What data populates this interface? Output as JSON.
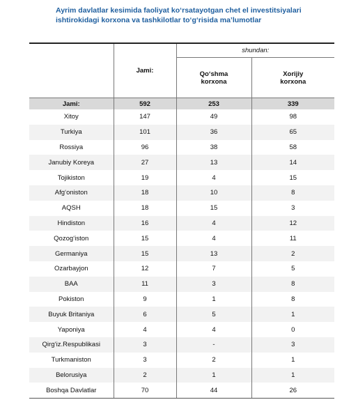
{
  "title": [
    "Ayrim davlatlar kesimida faoliyat ko‘rsatayotgan chet el investitsiyalari",
    "ishtirokidagi korxona va tashkilotlar to‘g‘risida ma’lumotlar"
  ],
  "table": {
    "header": {
      "total": "Jami:",
      "group": "shundan:",
      "joint": "Qo‘shma korxona",
      "foreign": "Xorijiy korxona"
    },
    "rows": [
      [
        "Jami:",
        592,
        253,
        339
      ],
      [
        "Xitoy",
        147,
        49,
        98
      ],
      [
        "Turkiya",
        101,
        36,
        65
      ],
      [
        "Rossiya",
        96,
        38,
        58
      ],
      [
        "Janubiy Koreya",
        27,
        13,
        14
      ],
      [
        "Tojikiston",
        19,
        4,
        15
      ],
      [
        "Afg‘oniston",
        18,
        10,
        8
      ],
      [
        "AQSH",
        18,
        15,
        3
      ],
      [
        "Hindiston",
        16,
        4,
        12
      ],
      [
        "Qozog‘iston",
        15,
        4,
        11
      ],
      [
        "Germaniya",
        15,
        13,
        2
      ],
      [
        "Ozarbayjon",
        12,
        7,
        5
      ],
      [
        "BAA",
        11,
        3,
        8
      ],
      [
        "Pokiston",
        9,
        1,
        8
      ],
      [
        "Buyuk Britaniya",
        6,
        5,
        1
      ],
      [
        "Yaponiya",
        4,
        4,
        0
      ],
      [
        "Qirg‘iz.Respublikasi",
        3,
        "-",
        3
      ],
      [
        "Turkmaniston",
        3,
        2,
        1
      ],
      [
        "Belorusiya",
        2,
        1,
        1
      ],
      [
        "Boshqa Davlatlar",
        70,
        44,
        26
      ]
    ]
  }
}
